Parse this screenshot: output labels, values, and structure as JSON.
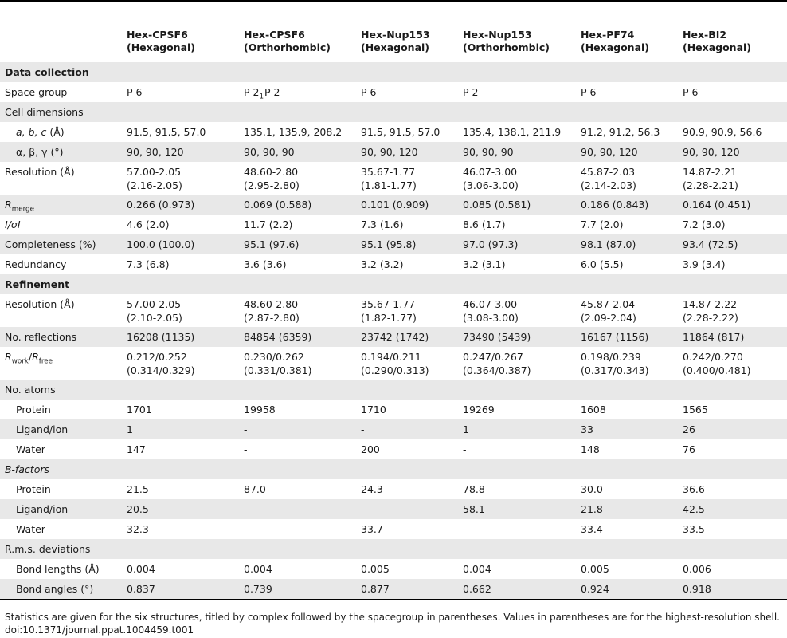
{
  "columns": [
    {
      "line1": "Hex-CPSF6",
      "line2": "(Hexagonal)"
    },
    {
      "line1": "Hex-CPSF6",
      "line2": "(Orthorhombic)"
    },
    {
      "line1": "Hex-Nup153",
      "line2": "(Hexagonal)"
    },
    {
      "line1": "Hex-Nup153",
      "line2": "(Orthorhombic)"
    },
    {
      "line1": "Hex-PF74",
      "line2": "(Hexagonal)"
    },
    {
      "line1": "Hex-BI2",
      "line2": "(Hexagonal)"
    }
  ],
  "sections": {
    "data_collection": "Data collection",
    "refinement": "Refinement"
  },
  "labels": {
    "space_group": "Space group",
    "cell_dimensions": "Cell dimensions",
    "abc": "a, b, c",
    "abc_unit": "(Å)",
    "angles": "α, β, γ (°)",
    "resolution": "Resolution (Å)",
    "r_merge_R": "R",
    "r_merge_sub": "merge",
    "i_sigma": "I/σI",
    "completeness": "Completeness (%)",
    "redundancy": "Redundancy",
    "no_reflections": "No. reflections",
    "rwork_R": "R",
    "rwork_sub": "work",
    "rfree_R": "R",
    "rfree_sub": "free",
    "no_atoms": "No. atoms",
    "protein": "Protein",
    "ligand": "Ligand/ion",
    "water": "Water",
    "bfactors": "B-factors",
    "rms": "R.m.s. deviations",
    "bond_lengths": "Bond lengths (Å)",
    "bond_angles": "Bond angles (°)"
  },
  "space_group": [
    {
      "base": "P 6",
      "sub": ""
    },
    {
      "base": "P 2",
      "sub": "1"
    },
    {
      "base": "P 6",
      "sub": ""
    },
    {
      "base": "P 2",
      "sub": "1"
    },
    {
      "base": "P 6",
      "sub": ""
    },
    {
      "base": "P 6",
      "sub": ""
    }
  ],
  "values": {
    "abc": [
      "91.5, 91.5, 57.0",
      "135.1, 135.9, 208.2",
      "91.5, 91.5, 57.0",
      "135.4, 138.1, 211.9",
      "91.2, 91.2, 56.3",
      "90.9, 90.9, 56.6"
    ],
    "angles": [
      "90, 90, 120",
      "90, 90, 90",
      "90, 90, 120",
      "90, 90, 90",
      "90, 90, 120",
      "90, 90, 120"
    ],
    "dc_resolution": [
      [
        "57.00-2.05",
        "(2.16-2.05)"
      ],
      [
        "48.60-2.80",
        "(2.95-2.80)"
      ],
      [
        "35.67-1.77",
        "(1.81-1.77)"
      ],
      [
        "46.07-3.00",
        "(3.06-3.00)"
      ],
      [
        "45.87-2.03",
        "(2.14-2.03)"
      ],
      [
        "14.87-2.21",
        "(2.28-2.21)"
      ]
    ],
    "r_merge": [
      "0.266 (0.973)",
      "0.069 (0.588)",
      "0.101 (0.909)",
      "0.085 (0.581)",
      "0.186 (0.843)",
      "0.164 (0.451)"
    ],
    "i_sigma": [
      "4.6 (2.0)",
      "11.7 (2.2)",
      "7.3 (1.6)",
      "8.6 (1.7)",
      "7.7 (2.0)",
      "7.2 (3.0)"
    ],
    "completeness": [
      "100.0 (100.0)",
      "95.1 (97.6)",
      "95.1 (95.8)",
      "97.0 (97.3)",
      "98.1 (87.0)",
      "93.4 (72.5)"
    ],
    "redundancy": [
      "7.3 (6.8)",
      "3.6 (3.6)",
      "3.2 (3.2)",
      "3.2 (3.1)",
      "6.0 (5.5)",
      "3.9 (3.4)"
    ],
    "ref_resolution": [
      [
        "57.00-2.05",
        "(2.10-2.05)"
      ],
      [
        "48.60-2.80",
        "(2.87-2.80)"
      ],
      [
        "35.67-1.77",
        "(1.82-1.77)"
      ],
      [
        "46.07-3.00",
        "(3.08-3.00)"
      ],
      [
        "45.87-2.04",
        "(2.09-2.04)"
      ],
      [
        "14.87-2.22",
        "(2.28-2.22)"
      ]
    ],
    "no_reflections": [
      "16208 (1135)",
      "84854 (6359)",
      "23742 (1742)",
      "73490 (5439)",
      "16167 (1156)",
      "11864 (817)"
    ],
    "rwork_rfree": [
      [
        "0.212/0.252",
        "(0.314/0.329)"
      ],
      [
        "0.230/0.262",
        "(0.331/0.381)"
      ],
      [
        "0.194/0.211",
        "(0.290/0.313)"
      ],
      [
        "0.247/0.267",
        "(0.364/0.387)"
      ],
      [
        "0.198/0.239",
        "(0.317/0.343)"
      ],
      [
        "0.242/0.270",
        "(0.400/0.481)"
      ]
    ],
    "atoms_protein": [
      "1701",
      "19958",
      "1710",
      "19269",
      "1608",
      "1565"
    ],
    "atoms_ligand": [
      "1",
      "-",
      "-",
      "1",
      "33",
      "26"
    ],
    "atoms_water": [
      "147",
      "-",
      "200",
      "-",
      "148",
      "76"
    ],
    "b_protein": [
      "21.5",
      "87.0",
      "24.3",
      "78.8",
      "30.0",
      "36.6"
    ],
    "b_ligand": [
      "20.5",
      "-",
      "-",
      "58.1",
      "21.8",
      "42.5"
    ],
    "b_water": [
      "32.3",
      "-",
      "33.7",
      "-",
      "33.4",
      "33.5"
    ],
    "bond_lengths": [
      "0.004",
      "0.004",
      "0.005",
      "0.004",
      "0.005",
      "0.006"
    ],
    "bond_angles": [
      "0.837",
      "0.739",
      "0.877",
      "0.662",
      "0.924",
      "0.918"
    ]
  },
  "footnote": {
    "line1": "Statistics are given for the six structures, titled by complex followed by the spacegroup in parentheses. Values in parentheses are for the highest-resolution shell.",
    "line2": "doi:10.1371/journal.ppat.1004459.t001"
  }
}
